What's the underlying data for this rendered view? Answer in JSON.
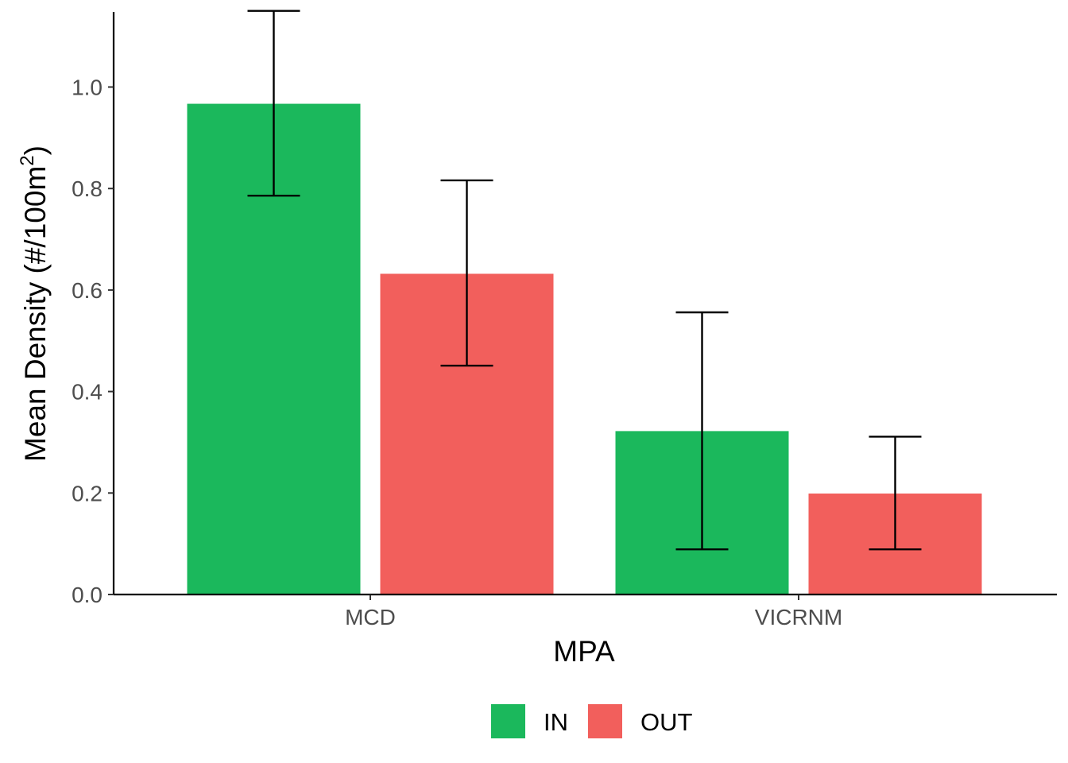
{
  "chart_data": {
    "type": "bar",
    "categories": [
      "MCD",
      "VICRNM"
    ],
    "series": [
      {
        "name": "IN",
        "color": "#1BB85C",
        "values": [
          0.967,
          0.322
        ],
        "err_low": [
          0.786,
          0.089
        ],
        "err_high": [
          1.15,
          0.556
        ]
      },
      {
        "name": "OUT",
        "color": "#F25F5C",
        "values": [
          0.632,
          0.199
        ],
        "err_low": [
          0.451,
          0.089
        ],
        "err_high": [
          0.816,
          0.311
        ]
      }
    ],
    "xlabel": "MPA",
    "ylabel": "Mean Density (#/100m",
    "ylabel_superscript": "2",
    "ylabel_close": ")",
    "yticks": [
      "0.0",
      "0.2",
      "0.4",
      "0.6",
      "0.8",
      "1.0"
    ],
    "ylim": [
      0,
      1.15
    ],
    "grid": false,
    "legend_position": "bottom"
  }
}
